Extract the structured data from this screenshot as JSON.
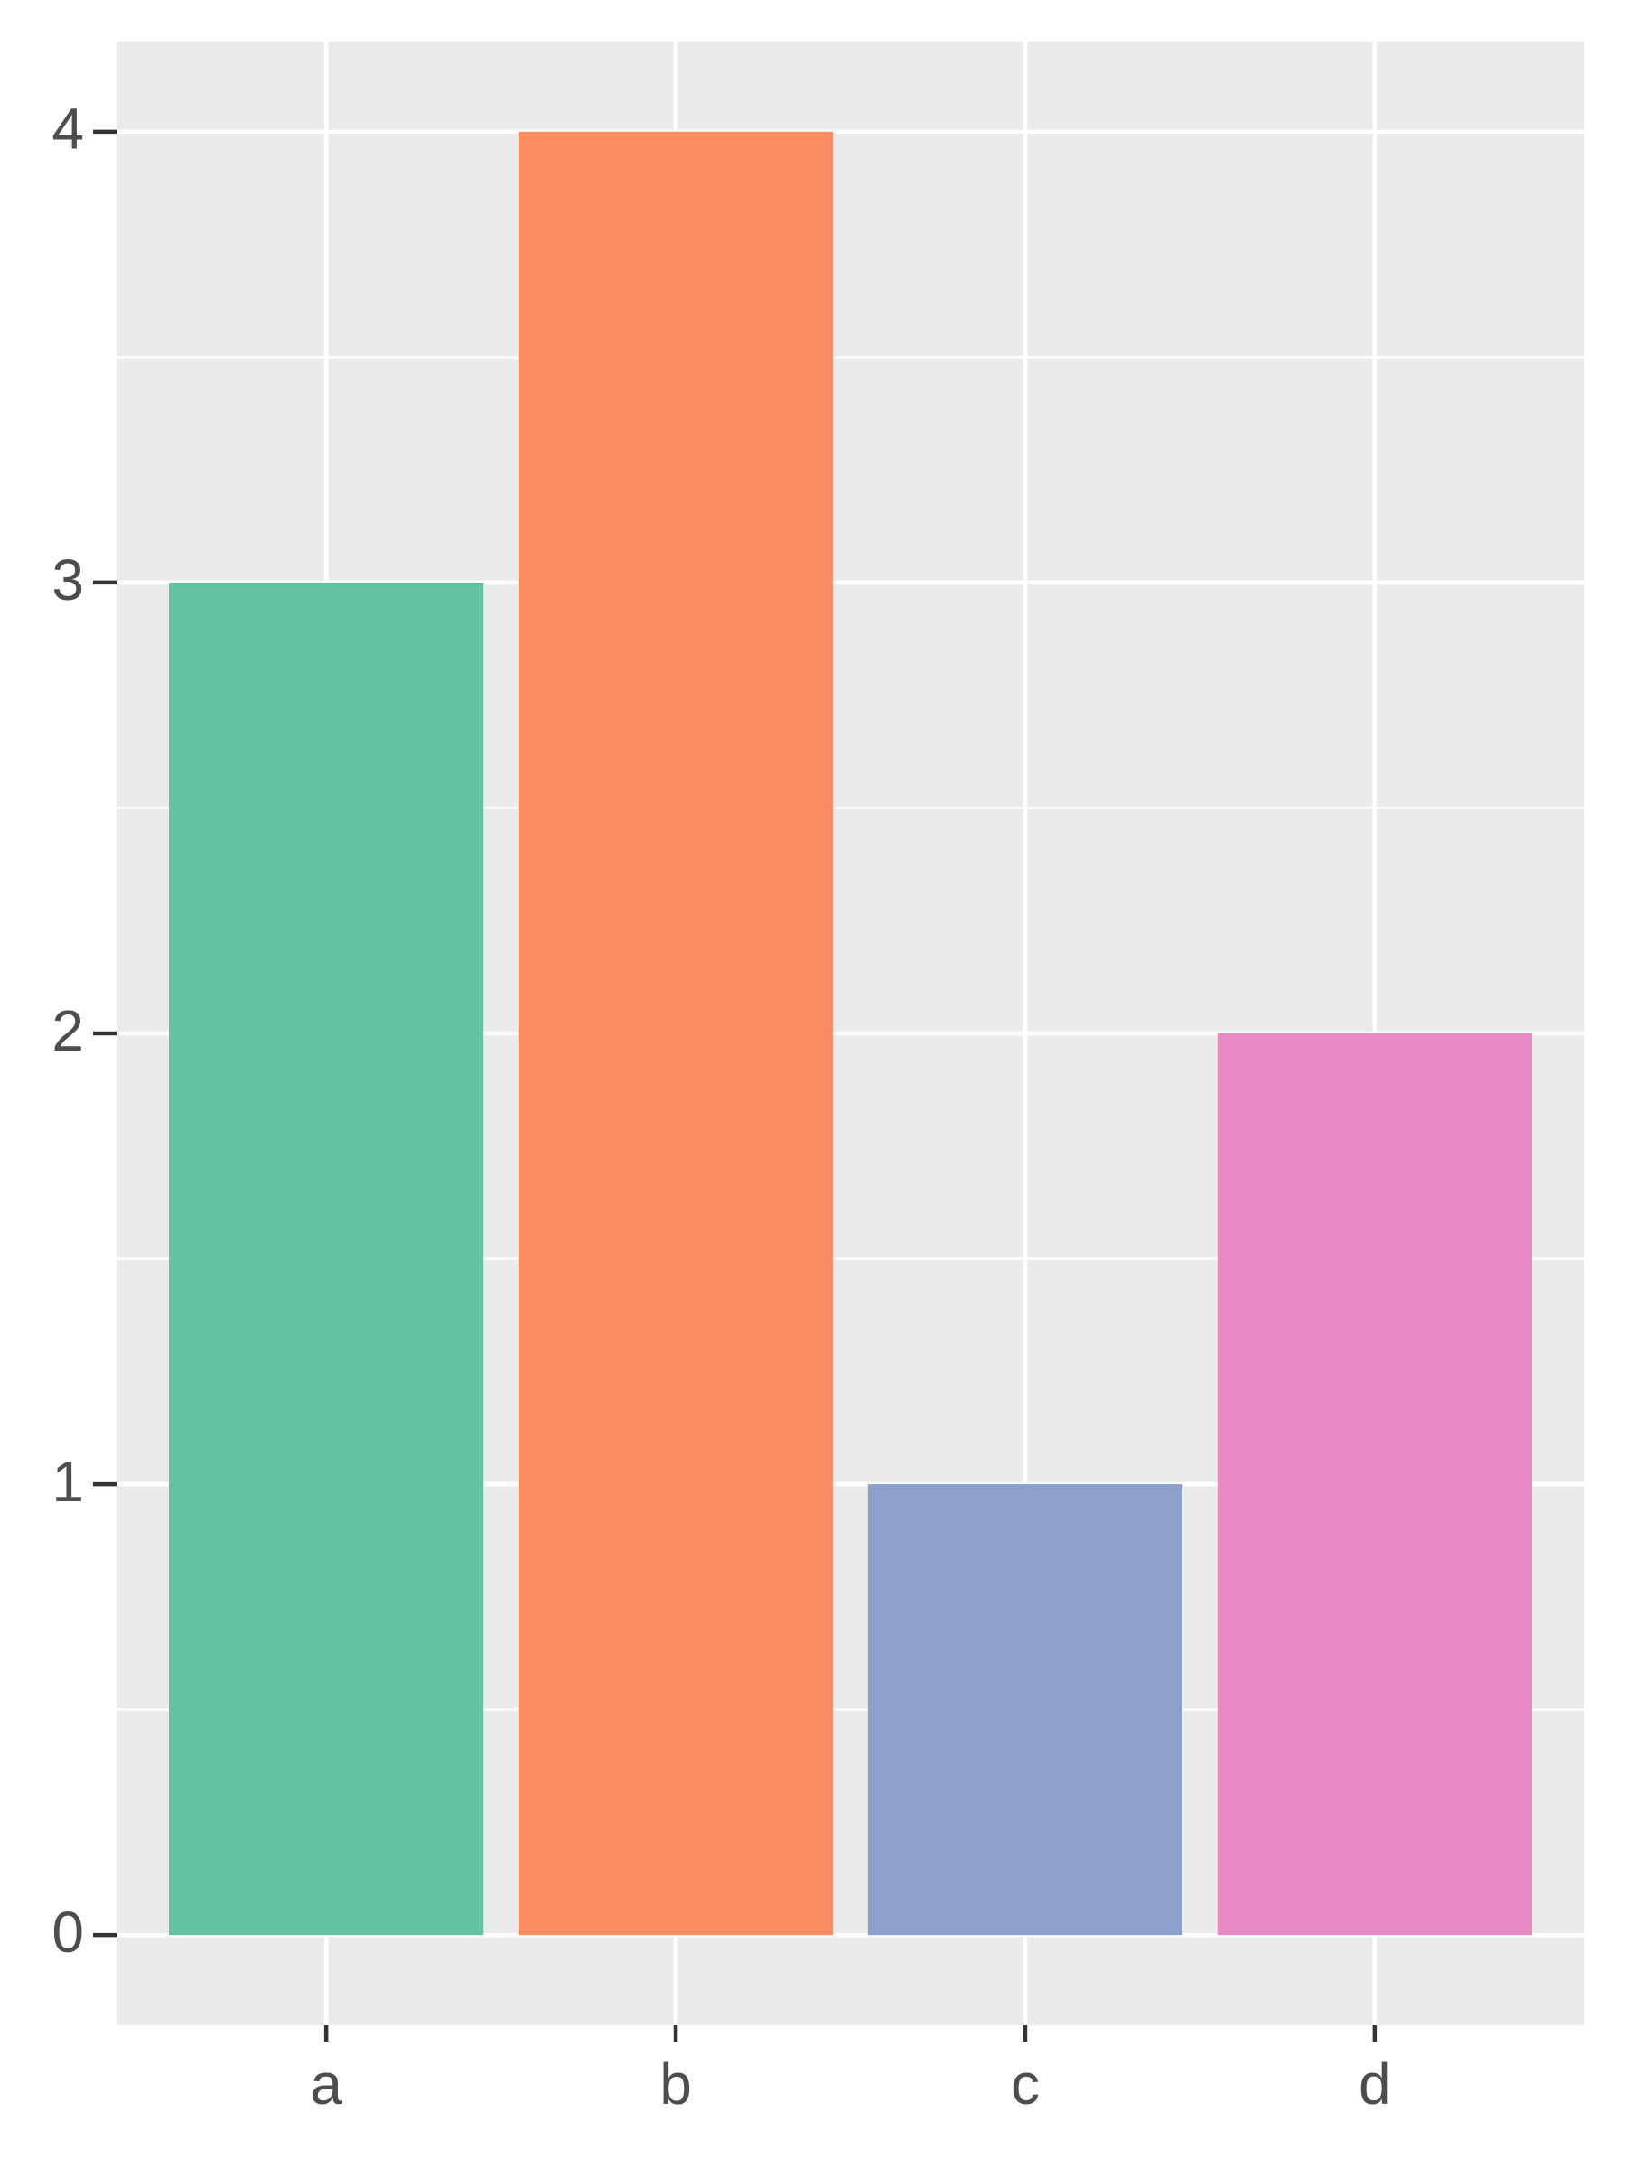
{
  "chart_data": {
    "type": "bar",
    "categories": [
      "a",
      "b",
      "c",
      "d"
    ],
    "values": [
      3,
      4,
      1,
      2
    ],
    "colors": [
      "#66c2a5",
      "#fc8d62",
      "#8da0cb",
      "#e78ac3"
    ],
    "ylim": [
      -0.2,
      4.2
    ],
    "yticks": [
      0,
      1,
      2,
      3,
      4
    ],
    "minor_yticks": [
      0.5,
      1.5,
      2.5,
      3.5
    ],
    "grid": true
  }
}
